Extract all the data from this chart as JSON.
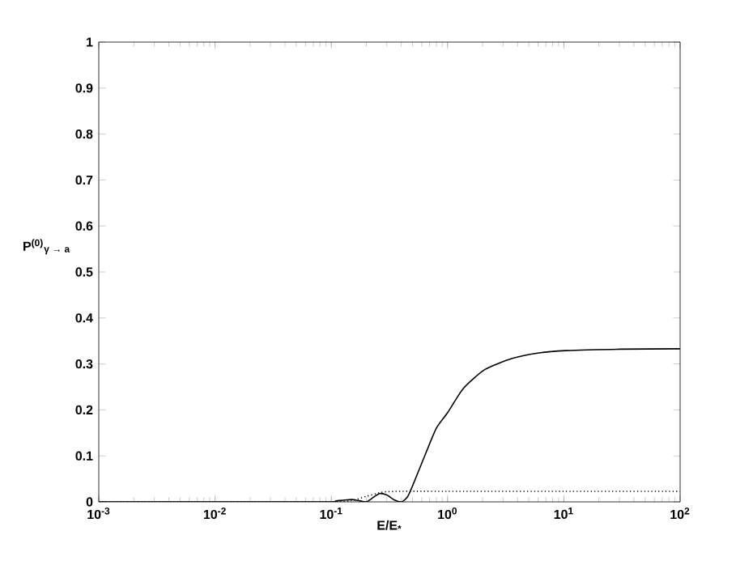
{
  "chart_data": {
    "type": "line",
    "xlabel": "E/E$_{*}$",
    "ylabel": "P$^{(0)}$$_{γ → a}$",
    "log": "x",
    "xlim": [
      0.001,
      100
    ],
    "ylim": [
      0,
      1
    ],
    "xticks": [
      {
        "value": 0.001,
        "label": "10$^{-3}$"
      },
      {
        "value": 0.01,
        "label": "10$^{-2}$"
      },
      {
        "value": 0.1,
        "label": "10$^{-1}$"
      },
      {
        "value": 1,
        "label": "10$^{0}$"
      },
      {
        "value": 10,
        "label": "10$^{1}$"
      },
      {
        "value": 100,
        "label": "10$^{2}$"
      }
    ],
    "yticks": [
      0,
      0.1,
      0.2,
      0.3,
      0.4,
      0.5,
      0.6,
      0.7,
      0.8,
      0.9,
      1
    ],
    "marker": "none",
    "grid": false,
    "series": [
      {
        "color": "#000000",
        "line_style": "solid",
        "x": [
          0.001,
          0.01,
          0.09,
          0.11,
          0.13,
          0.15,
          0.17,
          0.2,
          0.23,
          0.26,
          0.3,
          0.35,
          0.4,
          0.45,
          0.5,
          0.65,
          0.8,
          1,
          1.37,
          2.1,
          3.6,
          6.1,
          10.4,
          30,
          100
        ],
        "values": [
          0,
          0,
          0,
          0.002,
          0.004,
          0.005,
          0.003,
          0.0,
          0.01,
          0.018,
          0.015,
          0.004,
          0,
          0.01,
          0.035,
          0.106,
          0.16,
          0.194,
          0.247,
          0.288,
          0.312,
          0.324,
          0.329,
          0.332,
          0.333
        ]
      },
      {
        "color": "#000000",
        "line_style": "dotted",
        "x": [
          0.001,
          0.01,
          0.1,
          0.15,
          0.2,
          0.26,
          0.3,
          0.4,
          1,
          10,
          100
        ],
        "values": [
          0,
          0,
          0,
          0.003,
          0.012,
          0.02,
          0.022,
          0.023,
          0.023,
          0.023,
          0.023
        ]
      }
    ]
  }
}
